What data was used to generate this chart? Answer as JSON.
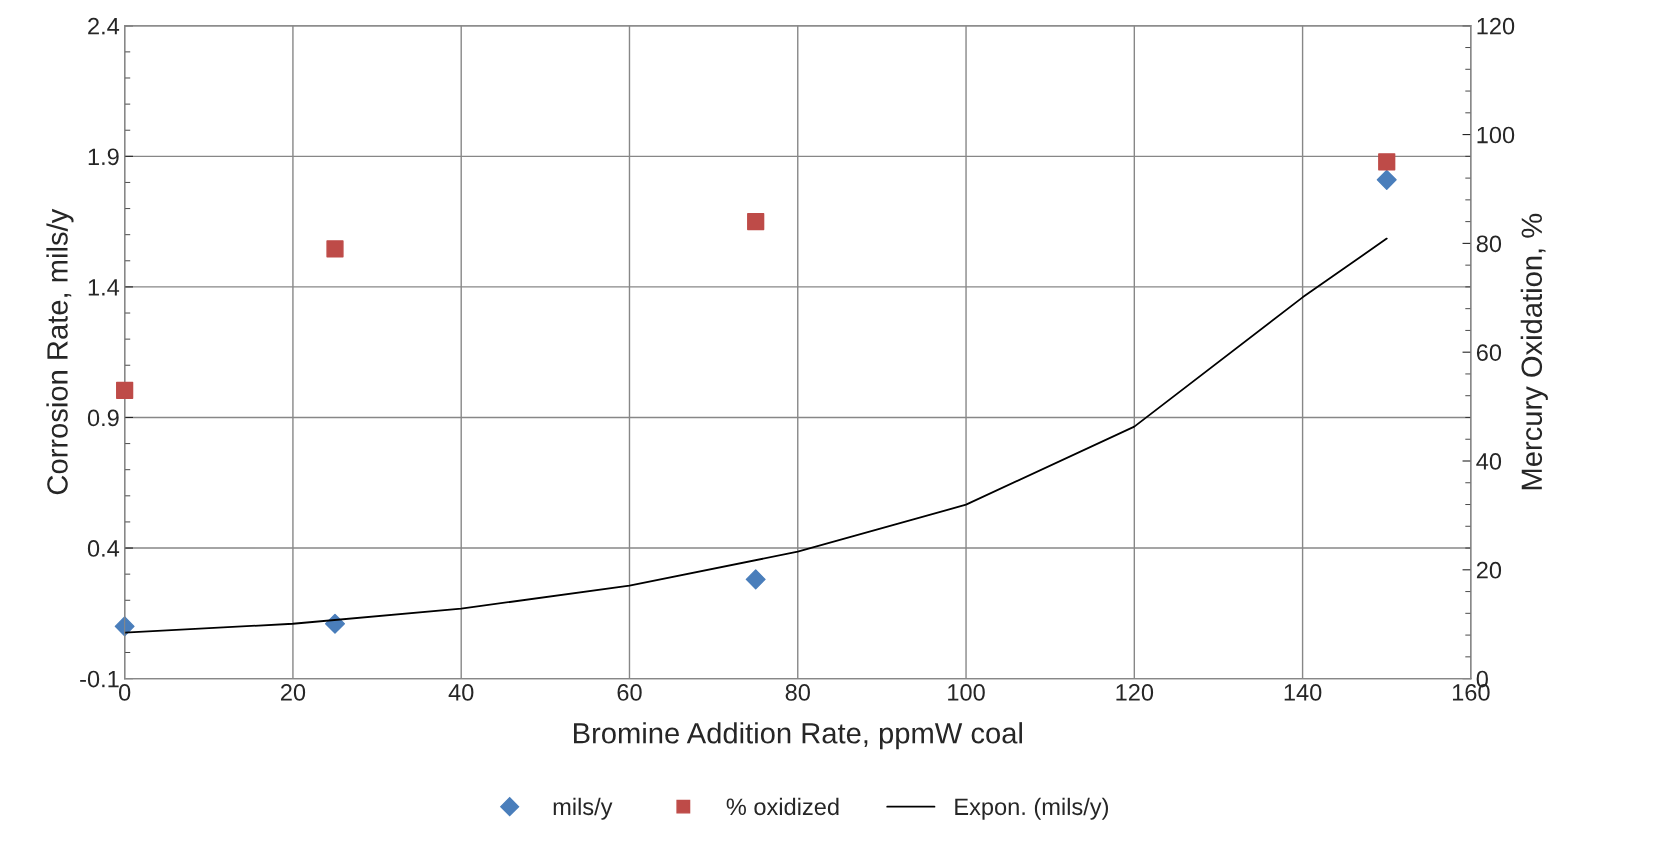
{
  "chart_data": {
    "type": "scatter",
    "xlabel": "Bromine Addition Rate, ppmW coal",
    "ylabel": "Corrosion Rate, mils/y",
    "y2label": "Mercury Oxidation, %",
    "xlim": [
      0,
      160
    ],
    "xticks": [
      0,
      20,
      40,
      60,
      80,
      100,
      120,
      140,
      160
    ],
    "ylim": [
      -0.1,
      2.4
    ],
    "yticks": [
      -0.1,
      0.4,
      0.9,
      1.4,
      1.9,
      2.4
    ],
    "y2lim": [
      0,
      120
    ],
    "y2ticks": [
      0,
      20,
      40,
      60,
      80,
      100,
      120
    ],
    "grid": true,
    "legend": "bottom",
    "series": [
      {
        "name": "mils/y",
        "marker": "diamond",
        "color": "#4a7ebb",
        "x": [
          0,
          25,
          75,
          150
        ],
        "values": [
          0.1,
          0.11,
          0.28,
          1.81
        ]
      },
      {
        "name": "% oxidized",
        "marker": "square",
        "color": "#be4b48",
        "axis": "y2",
        "x": [
          0,
          25,
          75,
          150
        ],
        "values": [
          53,
          79,
          84,
          95
        ]
      },
      {
        "name": "Expon. (mils/y)",
        "type": "line",
        "marker": "none",
        "line_style": "solid",
        "color": "#000000",
        "x": [
          0,
          20,
          40,
          60,
          80,
          100,
          120,
          140,
          150
        ],
        "values": [
          0.076,
          0.11,
          0.168,
          0.256,
          0.386,
          0.566,
          0.865,
          1.36,
          1.585
        ]
      }
    ]
  }
}
